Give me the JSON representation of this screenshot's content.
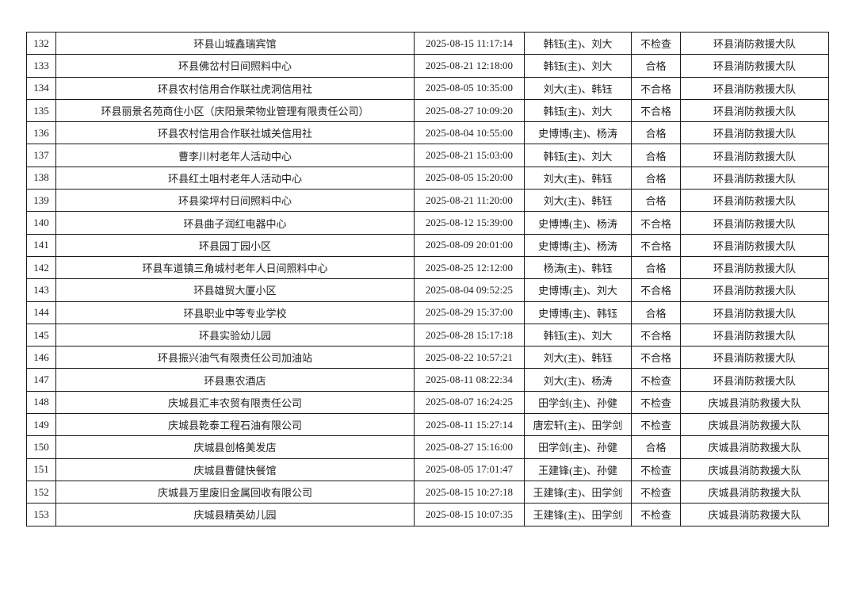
{
  "table": {
    "rows": [
      [
        "132",
        "环县山城鑫瑞宾馆",
        "2025-08-15 11:17:14",
        "韩钰(主)、刘大",
        "不检查",
        "环县消防救援大队"
      ],
      [
        "133",
        "环县佛岔村日间照料中心",
        "2025-08-21 12:18:00",
        "韩钰(主)、刘大",
        "合格",
        "环县消防救援大队"
      ],
      [
        "134",
        "环县农村信用合作联社虎洞信用社",
        "2025-08-05 10:35:00",
        "刘大(主)、韩钰",
        "不合格",
        "环县消防救援大队"
      ],
      [
        "135",
        "环县丽景名苑商住小区（庆阳景荣物业管理有限责任公司）",
        "2025-08-27 10:09:20",
        "韩钰(主)、刘大",
        "不合格",
        "环县消防救援大队"
      ],
      [
        "136",
        "环县农村信用合作联社城关信用社",
        "2025-08-04 10:55:00",
        "史博博(主)、杨涛",
        "合格",
        "环县消防救援大队"
      ],
      [
        "137",
        "曹李川村老年人活动中心",
        "2025-08-21 15:03:00",
        "韩钰(主)、刘大",
        "合格",
        "环县消防救援大队"
      ],
      [
        "138",
        "环县红土咀村老年人活动中心",
        "2025-08-05 15:20:00",
        "刘大(主)、韩钰",
        "合格",
        "环县消防救援大队"
      ],
      [
        "139",
        "环县梁坪村日间照料中心",
        "2025-08-21 11:20:00",
        "刘大(主)、韩钰",
        "合格",
        "环县消防救援大队"
      ],
      [
        "140",
        "环县曲子润红电器中心",
        "2025-08-12 15:39:00",
        "史博博(主)、杨涛",
        "不合格",
        "环县消防救援大队"
      ],
      [
        "141",
        "环县园丁园小区",
        "2025-08-09 20:01:00",
        "史博博(主)、杨涛",
        "不合格",
        "环县消防救援大队"
      ],
      [
        "142",
        "环县车道镇三角城村老年人日间照料中心",
        "2025-08-25 12:12:00",
        "杨涛(主)、韩钰",
        "合格",
        "环县消防救援大队"
      ],
      [
        "143",
        "环县雄贸大厦小区",
        "2025-08-04 09:52:25",
        "史博博(主)、刘大",
        "不合格",
        "环县消防救援大队"
      ],
      [
        "144",
        "环县职业中等专业学校",
        "2025-08-29 15:37:00",
        "史博博(主)、韩钰",
        "合格",
        "环县消防救援大队"
      ],
      [
        "145",
        "环县实验幼儿园",
        "2025-08-28 15:17:18",
        "韩钰(主)、刘大",
        "不合格",
        "环县消防救援大队"
      ],
      [
        "146",
        "环县振兴油气有限责任公司加油站",
        "2025-08-22 10:57:21",
        "刘大(主)、韩钰",
        "不合格",
        "环县消防救援大队"
      ],
      [
        "147",
        "环县惠农酒店",
        "2025-08-11 08:22:34",
        "刘大(主)、杨涛",
        "不检查",
        "环县消防救援大队"
      ],
      [
        "148",
        "庆城县汇丰农贸有限责任公司",
        "2025-08-07 16:24:25",
        "田学剑(主)、孙健",
        "不检查",
        "庆城县消防救援大队"
      ],
      [
        "149",
        "庆城县乾泰工程石油有限公司",
        "2025-08-11 15:27:14",
        "唐宏轩(主)、田学剑",
        "不检查",
        "庆城县消防救援大队"
      ],
      [
        "150",
        "庆城县创格美发店",
        "2025-08-27 15:16:00",
        "田学剑(主)、孙健",
        "合格",
        "庆城县消防救援大队"
      ],
      [
        "151",
        "庆城县曹健快餐馆",
        "2025-08-05 17:01:47",
        "王建锋(主)、孙健",
        "不检查",
        "庆城县消防救援大队"
      ],
      [
        "152",
        "庆城县万里废旧金属回收有限公司",
        "2025-08-15 10:27:18",
        "王建锋(主)、田学剑",
        "不检查",
        "庆城县消防救援大队"
      ],
      [
        "153",
        "庆城县精英幼儿园",
        "2025-08-15 10:07:35",
        "王建锋(主)、田学剑",
        "不检查",
        "庆城县消防救援大队"
      ]
    ]
  }
}
